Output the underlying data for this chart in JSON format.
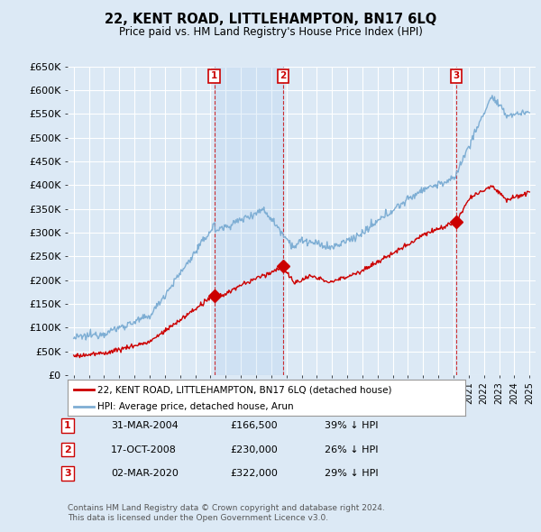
{
  "title": "22, KENT ROAD, LITTLEHAMPTON, BN17 6LQ",
  "subtitle": "Price paid vs. HM Land Registry's House Price Index (HPI)",
  "background_color": "#dce9f5",
  "plot_bg_color": "#dce9f5",
  "grid_color": "#ffffff",
  "red_color": "#cc0000",
  "blue_color": "#7eaed4",
  "shade_color": "#c8ddf0",
  "ylim": [
    0,
    650000
  ],
  "yticks": [
    0,
    50000,
    100000,
    150000,
    200000,
    250000,
    300000,
    350000,
    400000,
    450000,
    500000,
    550000,
    600000,
    650000
  ],
  "ytick_labels": [
    "£0",
    "£50K",
    "£100K",
    "£150K",
    "£200K",
    "£250K",
    "£300K",
    "£350K",
    "£400K",
    "£450K",
    "£500K",
    "£550K",
    "£600K",
    "£650K"
  ],
  "sale_dates_num": [
    2004.25,
    2008.79,
    2020.17
  ],
  "sale_prices": [
    166500,
    230000,
    322000
  ],
  "sale_labels": [
    "1",
    "2",
    "3"
  ],
  "sale_date_labels": [
    "31-MAR-2004",
    "17-OCT-2008",
    "02-MAR-2020"
  ],
  "sale_price_labels": [
    "£166,500",
    "£230,000",
    "£322,000"
  ],
  "sale_pct_labels": [
    "39% ↓ HPI",
    "26% ↓ HPI",
    "29% ↓ HPI"
  ],
  "legend_line1": "22, KENT ROAD, LITTLEHAMPTON, BN17 6LQ (detached house)",
  "legend_line2": "HPI: Average price, detached house, Arun",
  "footer1": "Contains HM Land Registry data © Crown copyright and database right 2024.",
  "footer2": "This data is licensed under the Open Government Licence v3.0."
}
